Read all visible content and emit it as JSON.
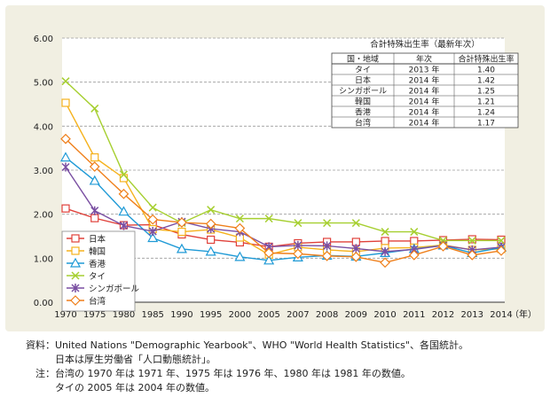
{
  "chart_data": {
    "type": "line",
    "x": [
      "1970",
      "1975",
      "1980",
      "1985",
      "1990",
      "1995",
      "2000",
      "2005",
      "2007",
      "2008",
      "2009",
      "2010",
      "2011",
      "2012",
      "2013",
      "2014"
    ],
    "x_unit": "（年）",
    "ylim": [
      0,
      6
    ],
    "yticks": [
      "0.00",
      "1.00",
      "2.00",
      "3.00",
      "4.00",
      "5.00",
      "6.00"
    ],
    "grid": "horizontal dashed",
    "legend_position": "bottom-left",
    "series": [
      {
        "name": "日本",
        "color": "#e0413a",
        "marker": "square",
        "values": [
          2.13,
          1.91,
          1.75,
          1.76,
          1.54,
          1.42,
          1.36,
          1.26,
          1.34,
          1.37,
          1.37,
          1.39,
          1.39,
          1.41,
          1.43,
          1.42
        ]
      },
      {
        "name": "韓国",
        "color": "#f5b21d",
        "marker": "square",
        "values": [
          4.53,
          3.29,
          2.82,
          1.66,
          1.6,
          1.65,
          1.47,
          1.08,
          1.25,
          1.19,
          1.15,
          1.23,
          1.24,
          1.3,
          1.19,
          1.21
        ]
      },
      {
        "name": "香港",
        "color": "#1f9ad6",
        "marker": "triangle",
        "values": [
          3.29,
          2.76,
          2.06,
          1.46,
          1.21,
          1.15,
          1.03,
          0.95,
          1.02,
          1.06,
          1.04,
          1.12,
          1.21,
          1.29,
          1.12,
          1.24
        ]
      },
      {
        "name": "タイ",
        "color": "#a6cf30",
        "marker": "x",
        "values": [
          5.02,
          4.4,
          2.9,
          2.15,
          1.8,
          2.1,
          1.9,
          1.9,
          1.8,
          1.8,
          1.8,
          1.6,
          1.6,
          1.4,
          1.4,
          1.4
        ]
      },
      {
        "name": "シンガポール",
        "color": "#7a4fa2",
        "marker": "star",
        "values": [
          3.07,
          2.08,
          1.74,
          1.61,
          1.83,
          1.67,
          1.6,
          1.26,
          1.29,
          1.28,
          1.22,
          1.15,
          1.2,
          1.29,
          1.19,
          1.25
        ]
      },
      {
        "name": "台湾",
        "color": "#ef7f1a",
        "marker": "diamond",
        "values": [
          3.71,
          3.08,
          2.46,
          1.88,
          1.81,
          1.78,
          1.68,
          1.12,
          1.1,
          1.05,
          1.03,
          0.9,
          1.07,
          1.27,
          1.07,
          1.17
        ]
      }
    ],
    "inset_table": {
      "title": "合計特殊出生率（最新年次）",
      "headers": [
        "国・地域",
        "年次",
        "合計特殊出生率"
      ],
      "rows": [
        [
          "タイ",
          "2013 年",
          "1.40"
        ],
        [
          "日本",
          "2014 年",
          "1.42"
        ],
        [
          "シンガポール",
          "2014 年",
          "1.25"
        ],
        [
          "韓国",
          "2014 年",
          "1.21"
        ],
        [
          "香港",
          "2014 年",
          "1.24"
        ],
        [
          "台湾",
          "2014 年",
          "1.17"
        ]
      ]
    }
  },
  "notes": {
    "source_key": "資料：",
    "source_lines": [
      "United Nations \"Demographic Yearbook\"、WHO \"World Health Statistics\"、各国統計。",
      "日本は厚生労働省「人口動態統計」。"
    ],
    "note_key": "注：",
    "note_lines": [
      "台湾の 1970 年は 1971 年、1975 年は 1976 年、1980 年は 1981 年の数値。",
      "タイの 2005 年は 2004 年の数値。"
    ]
  }
}
